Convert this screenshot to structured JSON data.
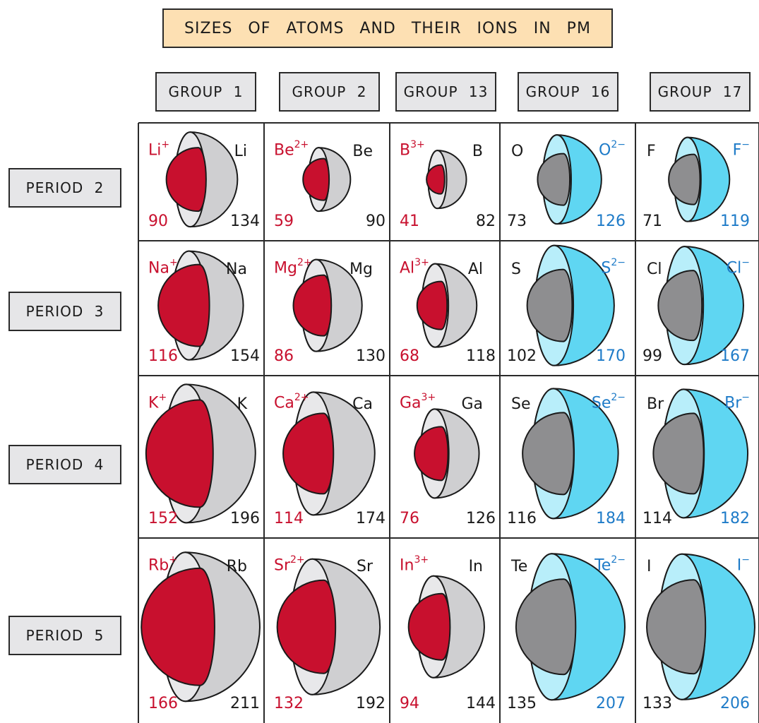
{
  "title": "SIZES OF ATOMS AND THEIR IONS IN PM",
  "groups": [
    "GROUP 1",
    "GROUP 2",
    "GROUP 13",
    "GROUP 16",
    "GROUP 17"
  ],
  "periods": [
    "PERIOD 2",
    "PERIOD 3",
    "PERIOD 4",
    "PERIOD 5"
  ],
  "colors": {
    "cation": "#c8102e",
    "anion": "#5fd6f2",
    "anion_label": "#1e7bc8",
    "atom_gray": "#cfcfd1",
    "small_gray": "#8e8e90",
    "title_bg": "#fde0b3",
    "label_bg": "#e6e6e8"
  },
  "cells": [
    [
      {
        "type": "cation",
        "ion_base": "Li",
        "ion_charge": "+",
        "atom": "Li",
        "ion_value": "90",
        "atom_value": "134",
        "ion_r": 90,
        "atom_r": 134
      },
      {
        "type": "cation",
        "ion_base": "Be",
        "ion_charge": "2+",
        "atom": "Be",
        "ion_value": "59",
        "atom_value": "90",
        "ion_r": 59,
        "atom_r": 90
      },
      {
        "type": "cation",
        "ion_base": "B",
        "ion_charge": "3+",
        "atom": "B",
        "ion_value": "41",
        "atom_value": "82",
        "ion_r": 41,
        "atom_r": 82
      },
      {
        "type": "anion",
        "ion_base": "O",
        "ion_charge": "2−",
        "atom": "O",
        "ion_value": "126",
        "atom_value": "73",
        "ion_r": 126,
        "atom_r": 73
      },
      {
        "type": "anion",
        "ion_base": "F",
        "ion_charge": "−",
        "atom": "F",
        "ion_value": "119",
        "atom_value": "71",
        "ion_r": 119,
        "atom_r": 71
      }
    ],
    [
      {
        "type": "cation",
        "ion_base": "Na",
        "ion_charge": "+",
        "atom": "Na",
        "ion_value": "116",
        "atom_value": "154",
        "ion_r": 116,
        "atom_r": 154
      },
      {
        "type": "cation",
        "ion_base": "Mg",
        "ion_charge": "2+",
        "atom": "Mg",
        "ion_value": "86",
        "atom_value": "130",
        "ion_r": 86,
        "atom_r": 130
      },
      {
        "type": "cation",
        "ion_base": "Al",
        "ion_charge": "3+",
        "atom": "Al",
        "ion_value": "68",
        "atom_value": "118",
        "ion_r": 68,
        "atom_r": 118
      },
      {
        "type": "anion",
        "ion_base": "S",
        "ion_charge": "2−",
        "atom": "S",
        "ion_value": "170",
        "atom_value": "102",
        "ion_r": 170,
        "atom_r": 102
      },
      {
        "type": "anion",
        "ion_base": "Cl",
        "ion_charge": "−",
        "atom": "Cl",
        "ion_value": "167",
        "atom_value": "99",
        "ion_r": 167,
        "atom_r": 99
      }
    ],
    [
      {
        "type": "cation",
        "ion_base": "K",
        "ion_charge": "+",
        "atom": "K",
        "ion_value": "152",
        "atom_value": "196",
        "ion_r": 152,
        "atom_r": 196
      },
      {
        "type": "cation",
        "ion_base": "Ca",
        "ion_charge": "2+",
        "atom": "Ca",
        "ion_value": "114",
        "atom_value": "174",
        "ion_r": 114,
        "atom_r": 174
      },
      {
        "type": "cation",
        "ion_base": "Ga",
        "ion_charge": "3+",
        "atom": "Ga",
        "ion_value": "76",
        "atom_value": "126",
        "ion_r": 76,
        "atom_r": 126
      },
      {
        "type": "anion",
        "ion_base": "Se",
        "ion_charge": "2−",
        "atom": "Se",
        "ion_value": "184",
        "atom_value": "116",
        "ion_r": 184,
        "atom_r": 116
      },
      {
        "type": "anion",
        "ion_base": "Br",
        "ion_charge": "−",
        "atom": "Br",
        "ion_value": "182",
        "atom_value": "114",
        "ion_r": 182,
        "atom_r": 114
      }
    ],
    [
      {
        "type": "cation",
        "ion_base": "Rb",
        "ion_charge": "+",
        "atom": "Rb",
        "ion_value": "166",
        "atom_value": "211",
        "ion_r": 166,
        "atom_r": 211
      },
      {
        "type": "cation",
        "ion_base": "Sr",
        "ion_charge": "2+",
        "atom": "Sr",
        "ion_value": "132",
        "atom_value": "192",
        "ion_r": 132,
        "atom_r": 192
      },
      {
        "type": "cation",
        "ion_base": "In",
        "ion_charge": "3+",
        "atom": "In",
        "ion_value": "94",
        "atom_value": "144",
        "ion_r": 94,
        "atom_r": 144
      },
      {
        "type": "anion",
        "ion_base": "Te",
        "ion_charge": "2−",
        "atom": "Te",
        "ion_value": "207",
        "atom_value": "135",
        "ion_r": 207,
        "atom_r": 135
      },
      {
        "type": "anion",
        "ion_base": "I",
        "ion_charge": "−",
        "atom": "I",
        "ion_value": "206",
        "atom_value": "133",
        "ion_r": 206,
        "atom_r": 133
      }
    ]
  ]
}
